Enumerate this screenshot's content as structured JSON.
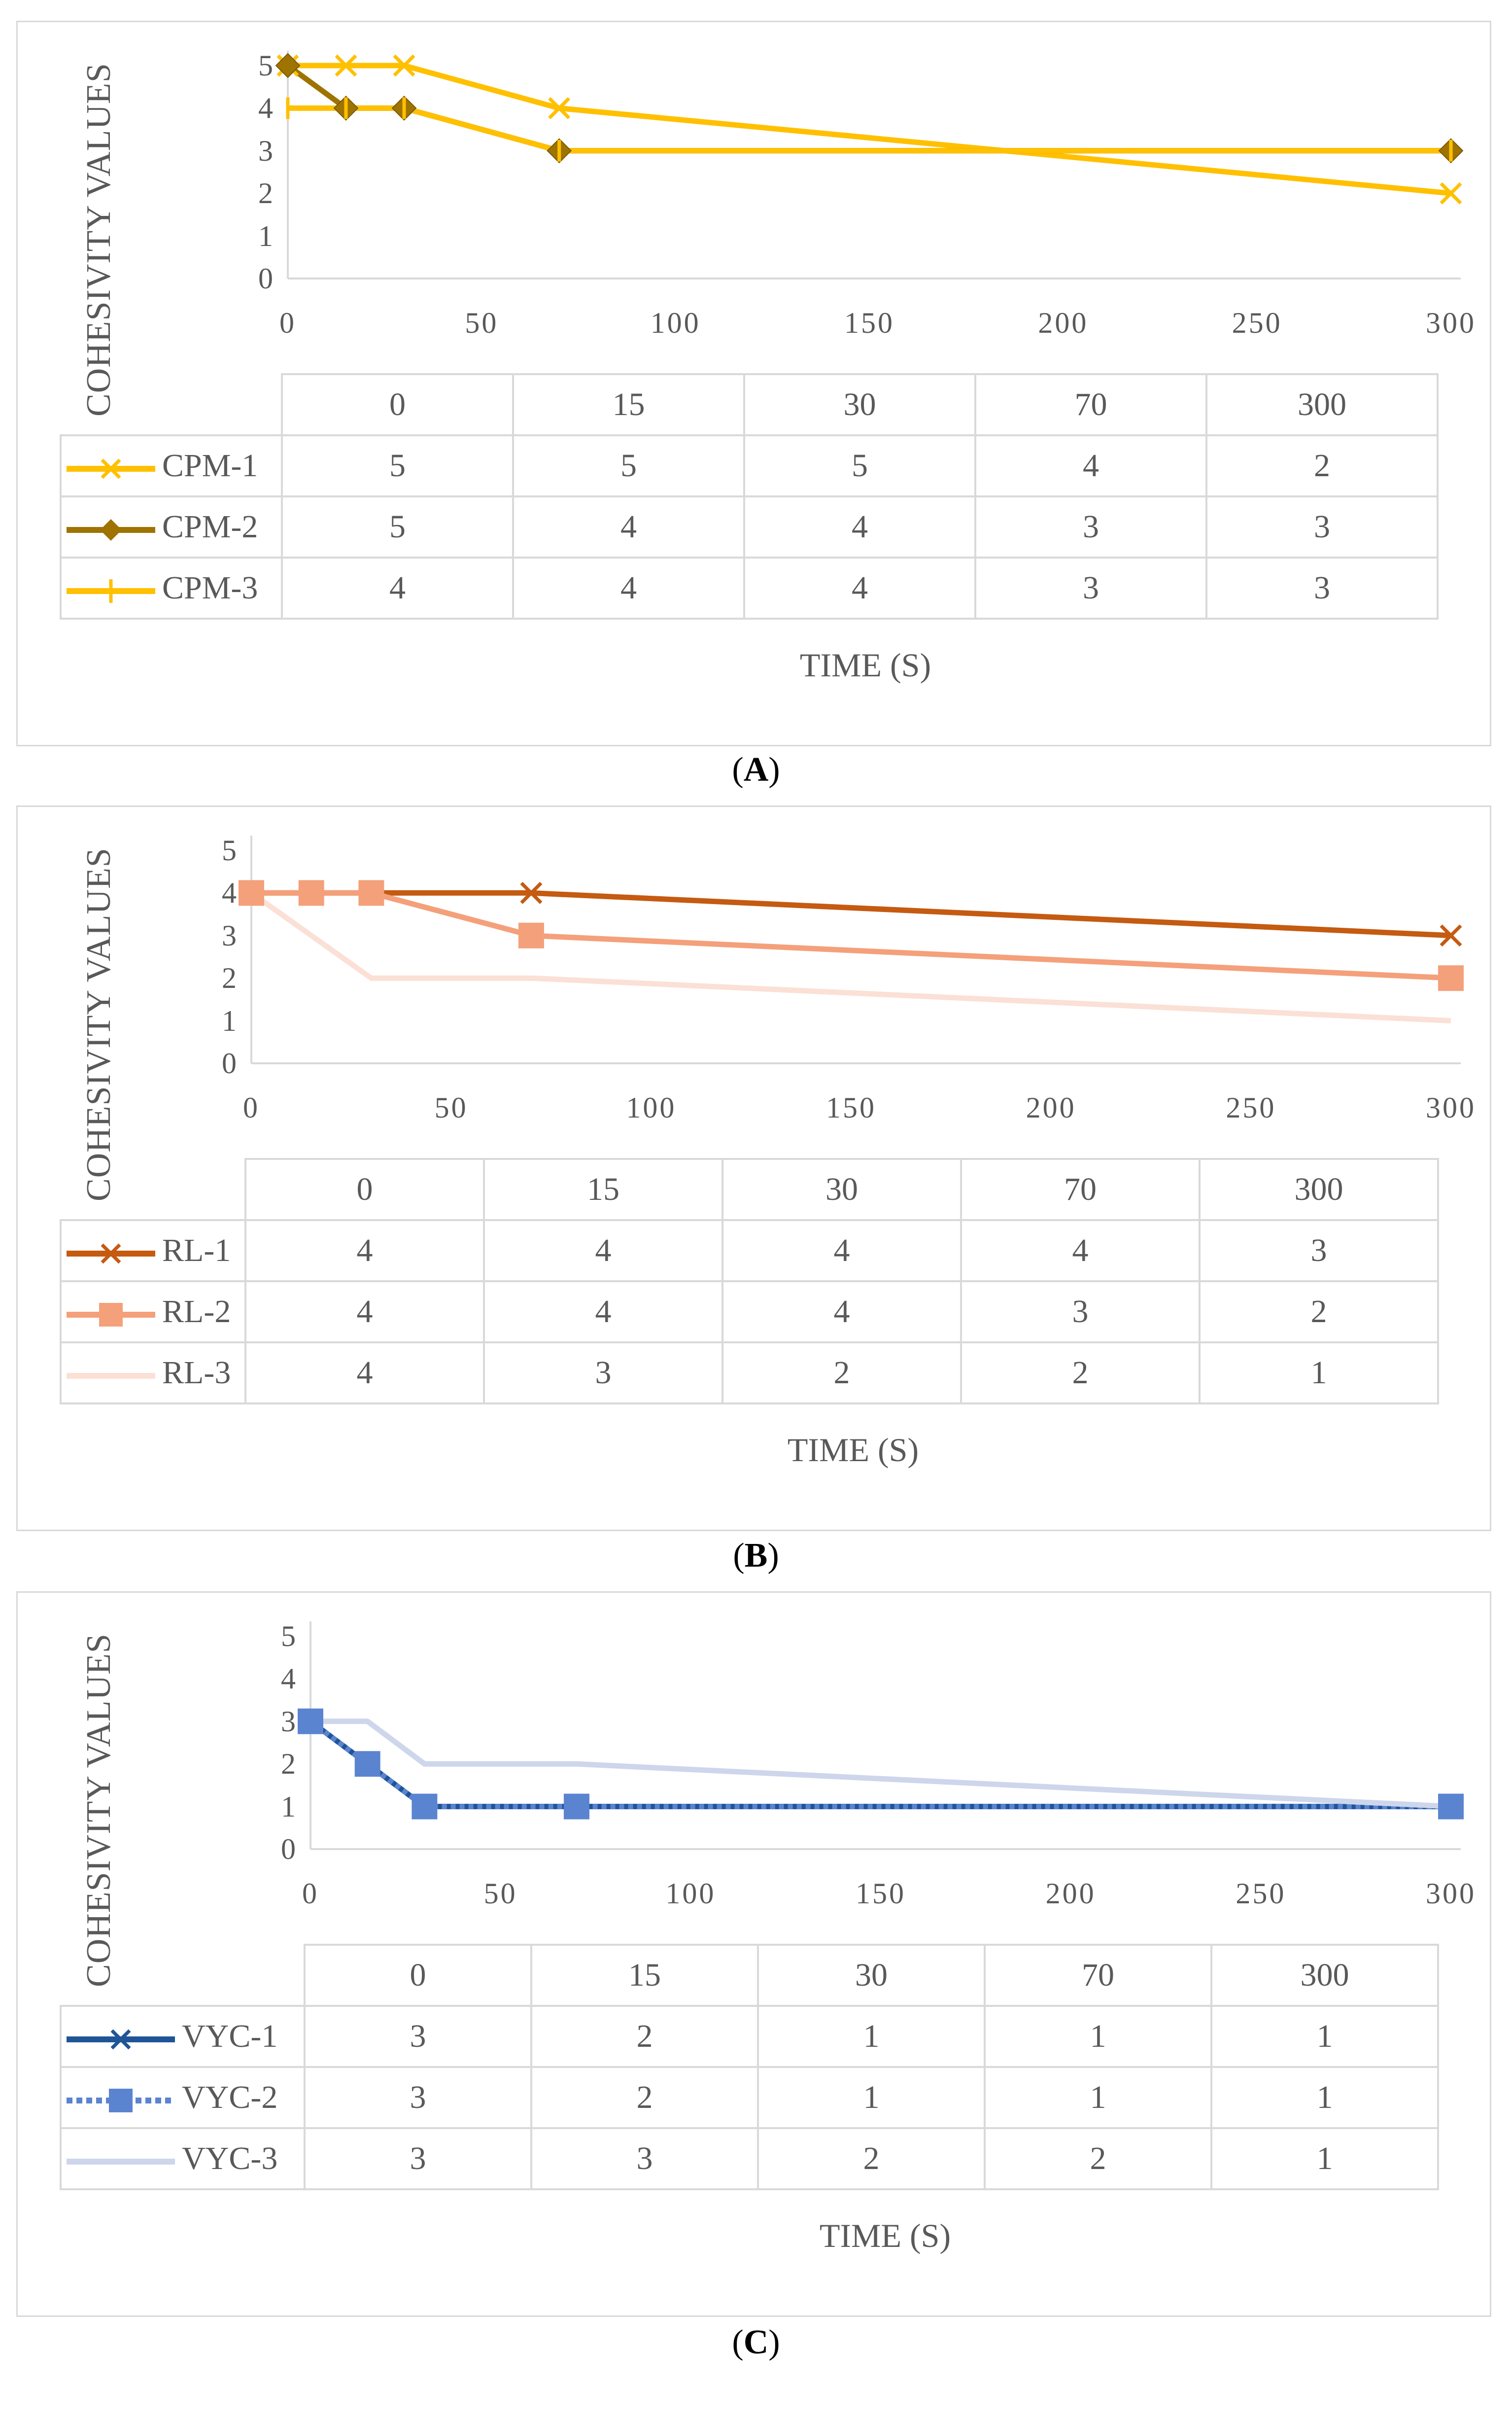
{
  "chart_data": [
    {
      "type": "line",
      "panel_label": "A",
      "ylabel": "COHESIVITY VALUES",
      "xlabel": "TIME (S)",
      "x": [
        0,
        15,
        30,
        70,
        300
      ],
      "xlim": [
        0,
        300
      ],
      "xticks": [
        0,
        50,
        100,
        150,
        200,
        250,
        300
      ],
      "ylim": [
        0,
        5
      ],
      "yticks": [
        0,
        1,
        2,
        3,
        4,
        5
      ],
      "table_header": [
        "0",
        "15",
        "30",
        "70",
        "300"
      ],
      "series": [
        {
          "name": "CPM-1",
          "values": [
            5,
            5,
            5,
            4,
            2
          ],
          "color": "#ffc000",
          "marker": "x"
        },
        {
          "name": "CPM-2",
          "values": [
            5,
            4,
            4,
            3,
            3
          ],
          "color": "#9e7300",
          "marker": "diamond"
        },
        {
          "name": "CPM-3",
          "values": [
            4,
            4,
            4,
            3,
            3
          ],
          "color": "#ffc000",
          "marker": "plus"
        }
      ]
    },
    {
      "type": "line",
      "panel_label": "B",
      "ylabel": "COHESIVITY VALUES",
      "xlabel": "TIME (S)",
      "x": [
        0,
        15,
        30,
        70,
        300
      ],
      "xlim": [
        0,
        300
      ],
      "xticks": [
        0,
        50,
        100,
        150,
        200,
        250,
        300
      ],
      "ylim": [
        0,
        5
      ],
      "yticks": [
        0,
        1,
        2,
        3,
        4,
        5
      ],
      "table_header": [
        "0",
        "15",
        "30",
        "70",
        "300"
      ],
      "series": [
        {
          "name": "RL-1",
          "values": [
            4,
            4,
            4,
            4,
            3
          ],
          "color": "#c55a11",
          "marker": "x"
        },
        {
          "name": "RL-2",
          "values": [
            4,
            4,
            4,
            3,
            2
          ],
          "color": "#f4a07a",
          "marker": "square"
        },
        {
          "name": "RL-3",
          "values": [
            4,
            3,
            2,
            2,
            1
          ],
          "color": "#fbe0d6",
          "marker": "none"
        }
      ]
    },
    {
      "type": "line",
      "panel_label": "C",
      "ylabel": "COHESIVITY VALUES",
      "xlabel": "TIME (S)",
      "x": [
        0,
        15,
        30,
        70,
        300
      ],
      "xlim": [
        0,
        300
      ],
      "xticks": [
        0,
        50,
        100,
        150,
        200,
        250,
        300
      ],
      "ylim": [
        0,
        5
      ],
      "yticks": [
        0,
        1,
        2,
        3,
        4,
        5
      ],
      "table_header": [
        "0",
        "15",
        "30",
        "70",
        "300"
      ],
      "series": [
        {
          "name": "VYC-1",
          "values": [
            3,
            2,
            1,
            1,
            1
          ],
          "color": "#1f5597",
          "marker": "x"
        },
        {
          "name": "VYC-2",
          "values": [
            3,
            2,
            1,
            1,
            1
          ],
          "color": "#5b84d0",
          "marker": "square",
          "dashed": true
        },
        {
          "name": "VYC-3",
          "values": [
            3,
            3,
            2,
            2,
            1
          ],
          "color": "#ced6ec",
          "marker": "none"
        }
      ]
    }
  ]
}
